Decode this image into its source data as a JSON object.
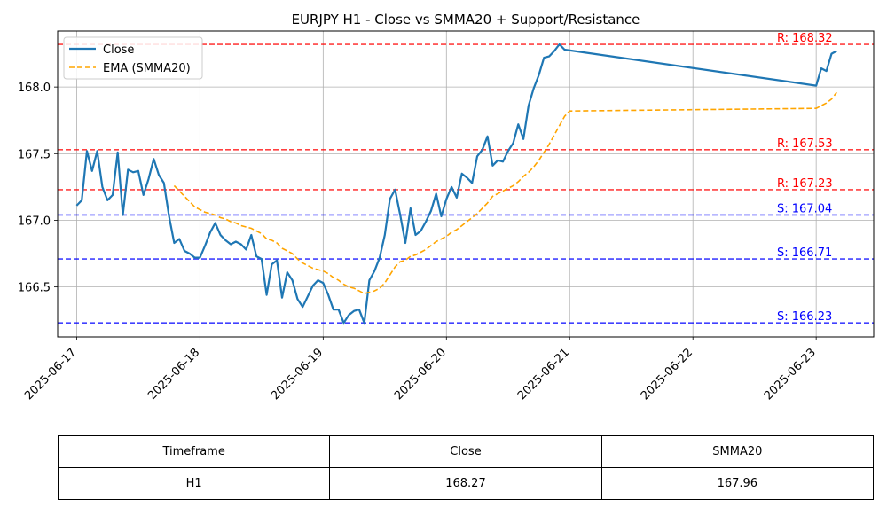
{
  "chart_data": {
    "type": "line",
    "title": "EURJPY H1 - Close vs SMMA20 + Support/Resistance",
    "xlabel": "",
    "ylabel": "",
    "x_ticks": [
      "2025-06-17",
      "2025-06-18",
      "2025-06-19",
      "2025-06-20",
      "2025-06-21",
      "2025-06-22",
      "2025-06-23"
    ],
    "y_ticks": [
      "166.5",
      "167.0",
      "167.5",
      "168.0"
    ],
    "xlim": [
      "2025-06-16T20:18",
      "2025-06-23T11:12"
    ],
    "ylim": [
      166.125,
      168.42
    ],
    "grid": true,
    "legend_position": "top-left",
    "series": [
      {
        "name": "Close",
        "color": "#1f77b4",
        "points": [
          [
            "2025-06-17T00:00",
            167.11
          ],
          [
            "2025-06-17T01:00",
            167.15
          ],
          [
            "2025-06-17T02:00",
            167.52
          ],
          [
            "2025-06-17T03:00",
            167.37
          ],
          [
            "2025-06-17T04:00",
            167.52
          ],
          [
            "2025-06-17T05:00",
            167.25
          ],
          [
            "2025-06-17T06:00",
            167.15
          ],
          [
            "2025-06-17T07:00",
            167.19
          ],
          [
            "2025-06-17T08:00",
            167.51
          ],
          [
            "2025-06-17T09:00",
            167.04
          ],
          [
            "2025-06-17T10:00",
            167.38
          ],
          [
            "2025-06-17T11:00",
            167.36
          ],
          [
            "2025-06-17T12:00",
            167.37
          ],
          [
            "2025-06-17T13:00",
            167.19
          ],
          [
            "2025-06-17T14:00",
            167.31
          ],
          [
            "2025-06-17T15:00",
            167.46
          ],
          [
            "2025-06-17T16:00",
            167.34
          ],
          [
            "2025-06-17T17:00",
            167.28
          ],
          [
            "2025-06-17T18:00",
            167.03
          ],
          [
            "2025-06-17T19:00",
            166.83
          ],
          [
            "2025-06-17T20:00",
            166.86
          ],
          [
            "2025-06-17T21:00",
            166.77
          ],
          [
            "2025-06-17T22:00",
            166.75
          ],
          [
            "2025-06-17T23:00",
            166.72
          ],
          [
            "2025-06-18T00:00",
            166.72
          ],
          [
            "2025-06-18T01:00",
            166.81
          ],
          [
            "2025-06-18T02:00",
            166.91
          ],
          [
            "2025-06-18T03:00",
            166.98
          ],
          [
            "2025-06-18T04:00",
            166.89
          ],
          [
            "2025-06-18T05:00",
            166.85
          ],
          [
            "2025-06-18T06:00",
            166.82
          ],
          [
            "2025-06-18T07:00",
            166.84
          ],
          [
            "2025-06-18T08:00",
            166.82
          ],
          [
            "2025-06-18T09:00",
            166.78
          ],
          [
            "2025-06-18T10:00",
            166.89
          ],
          [
            "2025-06-18T11:00",
            166.73
          ],
          [
            "2025-06-18T12:00",
            166.71
          ],
          [
            "2025-06-18T13:00",
            166.44
          ],
          [
            "2025-06-18T14:00",
            166.67
          ],
          [
            "2025-06-18T15:00",
            166.7
          ],
          [
            "2025-06-18T16:00",
            166.42
          ],
          [
            "2025-06-18T17:00",
            166.61
          ],
          [
            "2025-06-18T18:00",
            166.55
          ],
          [
            "2025-06-18T19:00",
            166.41
          ],
          [
            "2025-06-18T20:00",
            166.35
          ],
          [
            "2025-06-18T21:00",
            166.43
          ],
          [
            "2025-06-18T22:00",
            166.51
          ],
          [
            "2025-06-18T23:00",
            166.55
          ],
          [
            "2025-06-19T00:00",
            166.53
          ],
          [
            "2025-06-19T01:00",
            166.44
          ],
          [
            "2025-06-19T02:00",
            166.33
          ],
          [
            "2025-06-19T03:00",
            166.33
          ],
          [
            "2025-06-19T04:00",
            166.23
          ],
          [
            "2025-06-19T05:00",
            166.29
          ],
          [
            "2025-06-19T06:00",
            166.32
          ],
          [
            "2025-06-19T07:00",
            166.33
          ],
          [
            "2025-06-19T08:00",
            166.23
          ],
          [
            "2025-06-19T09:00",
            166.55
          ],
          [
            "2025-06-19T10:00",
            166.62
          ],
          [
            "2025-06-19T11:00",
            166.72
          ],
          [
            "2025-06-19T12:00",
            166.89
          ],
          [
            "2025-06-19T13:00",
            167.16
          ],
          [
            "2025-06-19T14:00",
            167.23
          ],
          [
            "2025-06-19T15:00",
            167.04
          ],
          [
            "2025-06-19T16:00",
            166.83
          ],
          [
            "2025-06-19T17:00",
            167.09
          ],
          [
            "2025-06-19T18:00",
            166.89
          ],
          [
            "2025-06-19T19:00",
            166.92
          ],
          [
            "2025-06-19T20:00",
            166.99
          ],
          [
            "2025-06-19T21:00",
            167.07
          ],
          [
            "2025-06-19T22:00",
            167.2
          ],
          [
            "2025-06-19T23:00",
            167.03
          ],
          [
            "2025-06-20T00:00",
            167.16
          ],
          [
            "2025-06-20T01:00",
            167.25
          ],
          [
            "2025-06-20T02:00",
            167.17
          ],
          [
            "2025-06-20T03:00",
            167.35
          ],
          [
            "2025-06-20T04:00",
            167.32
          ],
          [
            "2025-06-20T05:00",
            167.28
          ],
          [
            "2025-06-20T06:00",
            167.48
          ],
          [
            "2025-06-20T07:00",
            167.53
          ],
          [
            "2025-06-20T08:00",
            167.63
          ],
          [
            "2025-06-20T09:00",
            167.41
          ],
          [
            "2025-06-20T10:00",
            167.45
          ],
          [
            "2025-06-20T11:00",
            167.44
          ],
          [
            "2025-06-20T12:00",
            167.52
          ],
          [
            "2025-06-20T13:00",
            167.58
          ],
          [
            "2025-06-20T14:00",
            167.72
          ],
          [
            "2025-06-20T15:00",
            167.61
          ],
          [
            "2025-06-20T16:00",
            167.86
          ],
          [
            "2025-06-20T17:00",
            167.99
          ],
          [
            "2025-06-20T18:00",
            168.09
          ],
          [
            "2025-06-20T19:00",
            168.22
          ],
          [
            "2025-06-20T20:00",
            168.23
          ],
          [
            "2025-06-20T21:00",
            168.27
          ],
          [
            "2025-06-20T22:00",
            168.32
          ],
          [
            "2025-06-20T23:00",
            168.28
          ],
          [
            "2025-06-23T00:00",
            168.01
          ],
          [
            "2025-06-23T01:00",
            168.14
          ],
          [
            "2025-06-23T02:00",
            168.12
          ],
          [
            "2025-06-23T03:00",
            168.25
          ],
          [
            "2025-06-23T04:00",
            168.27
          ]
        ]
      },
      {
        "name": "EMA (SMMA20)",
        "color": "#ffa500",
        "points": [
          [
            "2025-06-17T19:00",
            167.26
          ],
          [
            "2025-06-17T20:00",
            167.22
          ],
          [
            "2025-06-17T21:00",
            167.18
          ],
          [
            "2025-06-17T22:00",
            167.14
          ],
          [
            "2025-06-17T23:00",
            167.1
          ],
          [
            "2025-06-18T00:00",
            167.08
          ],
          [
            "2025-06-18T01:00",
            167.06
          ],
          [
            "2025-06-18T02:00",
            167.05
          ],
          [
            "2025-06-18T03:00",
            167.04
          ],
          [
            "2025-06-18T04:00",
            167.02
          ],
          [
            "2025-06-18T05:00",
            167.01
          ],
          [
            "2025-06-18T06:00",
            166.99
          ],
          [
            "2025-06-18T07:00",
            166.98
          ],
          [
            "2025-06-18T08:00",
            166.96
          ],
          [
            "2025-06-18T09:00",
            166.95
          ],
          [
            "2025-06-18T10:00",
            166.94
          ],
          [
            "2025-06-18T11:00",
            166.92
          ],
          [
            "2025-06-18T12:00",
            166.9
          ],
          [
            "2025-06-18T13:00",
            166.86
          ],
          [
            "2025-06-18T14:00",
            166.85
          ],
          [
            "2025-06-18T15:00",
            166.83
          ],
          [
            "2025-06-18T16:00",
            166.79
          ],
          [
            "2025-06-18T17:00",
            166.77
          ],
          [
            "2025-06-18T18:00",
            166.75
          ],
          [
            "2025-06-18T19:00",
            166.71
          ],
          [
            "2025-06-18T20:00",
            166.68
          ],
          [
            "2025-06-18T21:00",
            166.66
          ],
          [
            "2025-06-18T22:00",
            166.64
          ],
          [
            "2025-06-18T23:00",
            166.63
          ],
          [
            "2025-06-19T00:00",
            166.62
          ],
          [
            "2025-06-19T01:00",
            166.6
          ],
          [
            "2025-06-19T02:00",
            166.57
          ],
          [
            "2025-06-19T03:00",
            166.55
          ],
          [
            "2025-06-19T04:00",
            166.52
          ],
          [
            "2025-06-19T05:00",
            166.5
          ],
          [
            "2025-06-19T06:00",
            166.49
          ],
          [
            "2025-06-19T07:00",
            166.47
          ],
          [
            "2025-06-19T08:00",
            166.45
          ],
          [
            "2025-06-19T09:00",
            166.46
          ],
          [
            "2025-06-19T10:00",
            166.47
          ],
          [
            "2025-06-19T11:00",
            166.49
          ],
          [
            "2025-06-19T12:00",
            166.53
          ],
          [
            "2025-06-19T13:00",
            166.59
          ],
          [
            "2025-06-19T14:00",
            166.65
          ],
          [
            "2025-06-19T15:00",
            166.69
          ],
          [
            "2025-06-19T16:00",
            166.7
          ],
          [
            "2025-06-19T17:00",
            166.73
          ],
          [
            "2025-06-19T18:00",
            166.74
          ],
          [
            "2025-06-19T19:00",
            166.76
          ],
          [
            "2025-06-19T20:00",
            166.78
          ],
          [
            "2025-06-19T21:00",
            166.81
          ],
          [
            "2025-06-19T22:00",
            166.84
          ],
          [
            "2025-06-19T23:00",
            166.86
          ],
          [
            "2025-06-20T00:00",
            166.88
          ],
          [
            "2025-06-20T01:00",
            166.91
          ],
          [
            "2025-06-20T02:00",
            166.93
          ],
          [
            "2025-06-20T03:00",
            166.96
          ],
          [
            "2025-06-20T04:00",
            166.99
          ],
          [
            "2025-06-20T05:00",
            167.02
          ],
          [
            "2025-06-20T06:00",
            167.05
          ],
          [
            "2025-06-20T07:00",
            167.09
          ],
          [
            "2025-06-20T08:00",
            167.13
          ],
          [
            "2025-06-20T09:00",
            167.18
          ],
          [
            "2025-06-20T10:00",
            167.2
          ],
          [
            "2025-06-20T11:00",
            167.22
          ],
          [
            "2025-06-20T12:00",
            167.24
          ],
          [
            "2025-06-20T13:00",
            167.26
          ],
          [
            "2025-06-20T14:00",
            167.29
          ],
          [
            "2025-06-20T15:00",
            167.33
          ],
          [
            "2025-06-20T16:00",
            167.36
          ],
          [
            "2025-06-20T17:00",
            167.4
          ],
          [
            "2025-06-20T18:00",
            167.45
          ],
          [
            "2025-06-20T19:00",
            167.51
          ],
          [
            "2025-06-20T20:00",
            167.57
          ],
          [
            "2025-06-20T21:00",
            167.64
          ],
          [
            "2025-06-20T22:00",
            167.71
          ],
          [
            "2025-06-20T23:00",
            167.78
          ],
          [
            "2025-06-21T00:00",
            167.82
          ],
          [
            "2025-06-23T00:00",
            167.84
          ],
          [
            "2025-06-23T01:00",
            167.86
          ],
          [
            "2025-06-23T02:00",
            167.88
          ],
          [
            "2025-06-23T03:00",
            167.91
          ],
          [
            "2025-06-23T04:00",
            167.96
          ]
        ]
      }
    ],
    "levels": [
      {
        "kind": "resistance",
        "label": "R: 168.32",
        "value": 168.32,
        "color": "#ff0000"
      },
      {
        "kind": "resistance",
        "label": "R: 167.53",
        "value": 167.53,
        "color": "#ff0000"
      },
      {
        "kind": "resistance",
        "label": "R: 167.23",
        "value": 167.23,
        "color": "#ff0000"
      },
      {
        "kind": "support",
        "label": "S: 167.04",
        "value": 167.04,
        "color": "#0000ff"
      },
      {
        "kind": "support",
        "label": "S: 166.71",
        "value": 166.71,
        "color": "#0000ff"
      },
      {
        "kind": "support",
        "label": "S: 166.23",
        "value": 166.23,
        "color": "#0000ff"
      }
    ]
  },
  "table": {
    "headers": [
      "Timeframe",
      "Close",
      "SMMA20"
    ],
    "row": [
      "H1",
      "168.27",
      "167.96"
    ]
  }
}
